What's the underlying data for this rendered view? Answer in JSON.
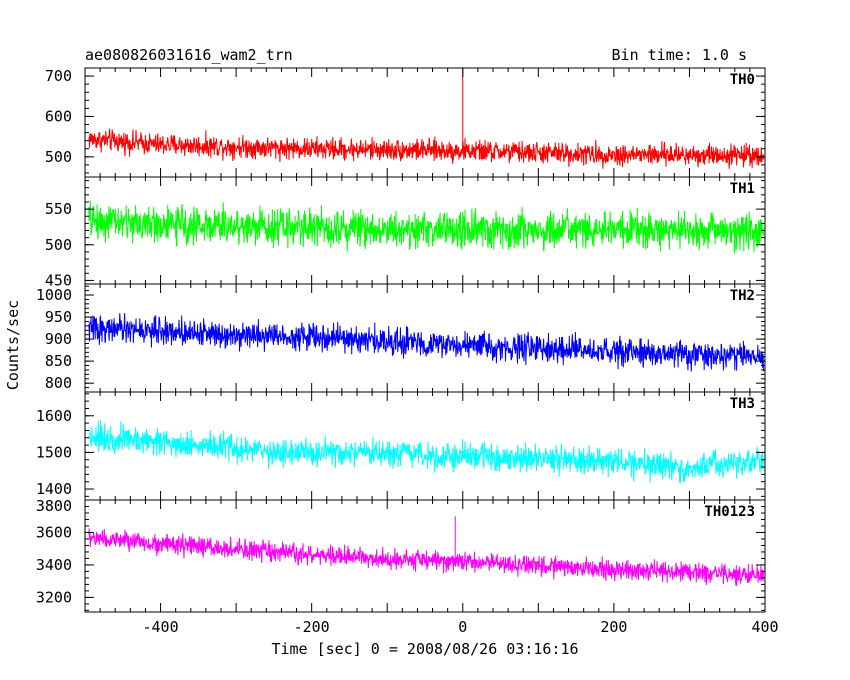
{
  "chart_data": {
    "type": "line",
    "title": "ae080826031616_wam2_trn",
    "subtitle": "Bin time: 1.0 s",
    "xlabel": "Time [sec] 0 = 2008/08/26 03:16:16",
    "ylabel": "Counts/sec",
    "xlim": [
      -500,
      400
    ],
    "x_tick_labels": [
      "-400",
      "-200",
      "0",
      "200",
      "400"
    ],
    "grid": false,
    "panels": [
      {
        "name": "TH0",
        "color": "#ff0000",
        "ylim": [
          450,
          720
        ],
        "y_ticks": [
          500,
          600,
          700
        ],
        "y_tick_labels": [
          "500",
          "600",
          "700"
        ],
        "trend": [
          [
            -500,
            545
          ],
          [
            -400,
            530
          ],
          [
            -200,
            520
          ],
          [
            0,
            515
          ],
          [
            200,
            505
          ],
          [
            400,
            505
          ]
        ],
        "noise_amplitude": 40,
        "spikes": [
          {
            "x": 0,
            "y": 720
          }
        ]
      },
      {
        "name": "TH1",
        "color": "#00ff00",
        "ylim": [
          445,
          595
        ],
        "y_ticks": [
          450,
          500,
          550
        ],
        "y_tick_labels": [
          "450",
          "500",
          "550"
        ],
        "trend": [
          [
            -500,
            535
          ],
          [
            -400,
            528
          ],
          [
            -200,
            525
          ],
          [
            0,
            520
          ],
          [
            200,
            520
          ],
          [
            400,
            520
          ]
        ],
        "noise_amplitude": 38,
        "spikes": []
      },
      {
        "name": "TH2",
        "color": "#0000ff",
        "ylim": [
          780,
          1025
        ],
        "y_ticks": [
          800,
          850,
          900,
          950,
          1000
        ],
        "y_tick_labels": [
          "800",
          "850",
          "900",
          "950",
          "1000"
        ],
        "trend": [
          [
            -500,
            925
          ],
          [
            -400,
            918
          ],
          [
            -200,
            905
          ],
          [
            0,
            885
          ],
          [
            200,
            870
          ],
          [
            400,
            860
          ]
        ],
        "noise_amplitude": 45,
        "spikes": []
      },
      {
        "name": "TH3",
        "color": "#00ffff",
        "ylim": [
          1370,
          1665
        ],
        "y_ticks": [
          1400,
          1500,
          1600
        ],
        "y_tick_labels": [
          "1400",
          "1500",
          "1600"
        ],
        "trend": [
          [
            -500,
            1545
          ],
          [
            -400,
            1530
          ],
          [
            -250,
            1500
          ],
          [
            0,
            1490
          ],
          [
            200,
            1475
          ],
          [
            300,
            1455
          ],
          [
            400,
            1480
          ]
        ],
        "noise_amplitude": 55,
        "spikes": []
      },
      {
        "name": "TH0123",
        "color": "#ff00ff",
        "ylim": [
          3110,
          3800
        ],
        "y_ticks": [
          3200,
          3400,
          3600,
          3800
        ],
        "y_tick_labels": [
          "3200",
          "3400",
          "3600",
          "3800"
        ],
        "trend": [
          [
            -500,
            3570
          ],
          [
            -400,
            3530
          ],
          [
            -200,
            3460
          ],
          [
            0,
            3420
          ],
          [
            200,
            3370
          ],
          [
            400,
            3340
          ]
        ],
        "noise_amplitude": 90,
        "spikes": [
          {
            "x": -10,
            "y": 3700
          }
        ]
      }
    ]
  }
}
